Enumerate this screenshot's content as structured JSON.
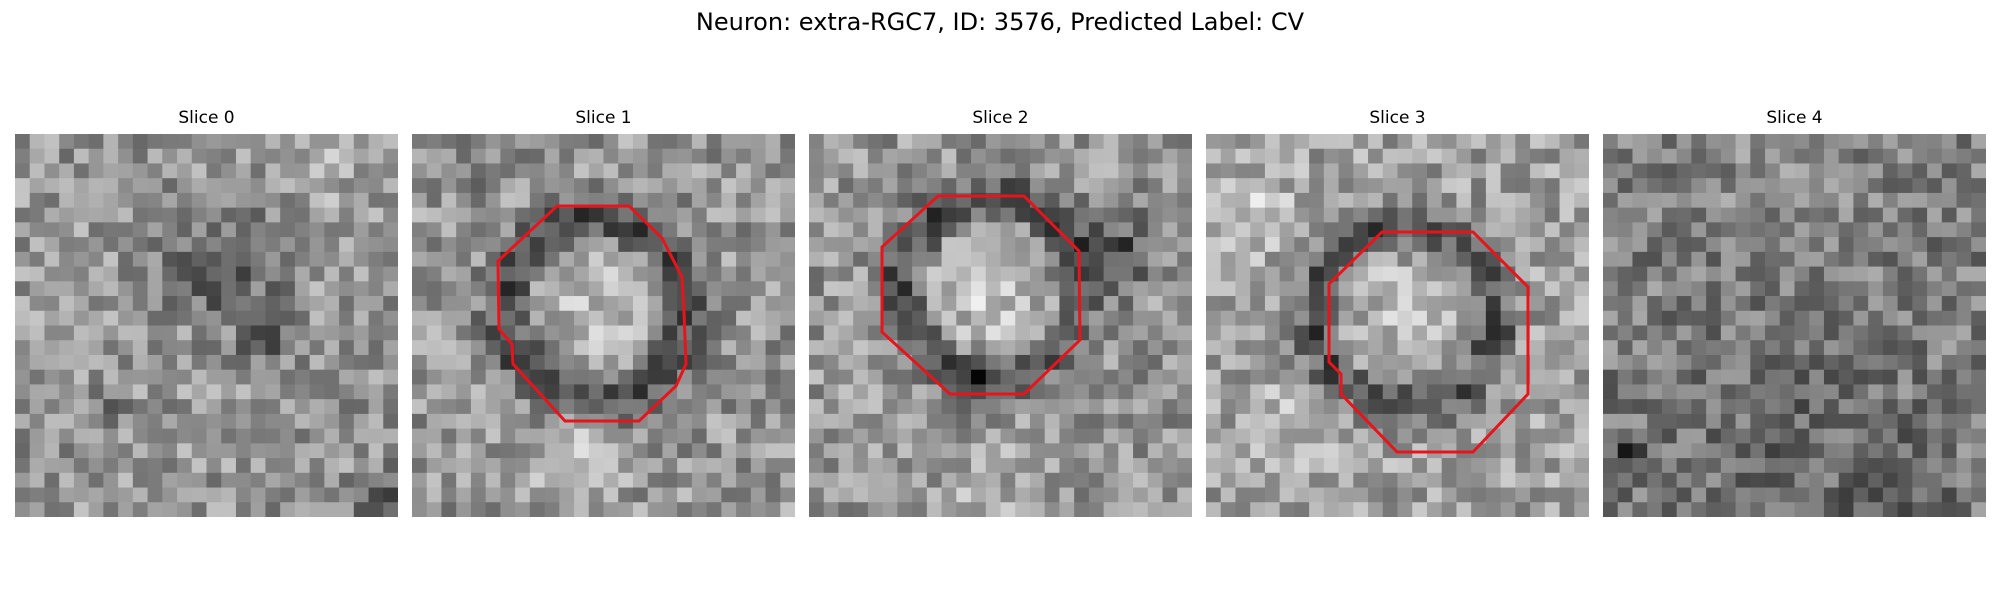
{
  "figure": {
    "title": "Neuron: extra-RGC7, ID: 3576, Predicted Label: CV",
    "outline_color": "#e8141b"
  },
  "slices": [
    {
      "label": "Slice 0",
      "has_outline": false
    },
    {
      "label": "Slice 1",
      "has_outline": true
    },
    {
      "label": "Slice 2",
      "has_outline": true
    },
    {
      "label": "Slice 3",
      "has_outline": true
    },
    {
      "label": "Slice 4",
      "has_outline": false
    }
  ]
}
